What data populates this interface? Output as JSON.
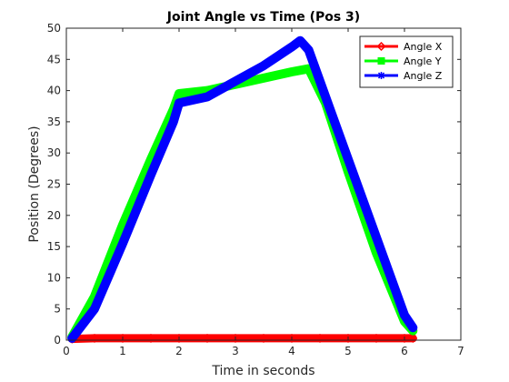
{
  "chart_data": {
    "type": "line",
    "title": "Joint Angle vs Time (Pos 3)",
    "xlabel": "Time in seconds",
    "ylabel": "Position (Degrees)",
    "xlim": [
      0,
      7
    ],
    "ylim": [
      0,
      50
    ],
    "xticks": [
      0,
      1,
      2,
      3,
      4,
      5,
      6,
      7
    ],
    "yticks": [
      0,
      5,
      10,
      15,
      20,
      25,
      30,
      35,
      40,
      45,
      50
    ],
    "grid": false,
    "legend_position": "top-right",
    "series": [
      {
        "name": "Angle X",
        "color": "#ff0000",
        "marker": "diamond",
        "x": [
          0.1,
          0.5,
          1.0,
          1.5,
          2.0,
          2.5,
          3.0,
          3.5,
          4.0,
          4.5,
          5.0,
          5.5,
          6.0,
          6.15
        ],
        "y": [
          0.2,
          0.3,
          0.3,
          0.3,
          0.3,
          0.3,
          0.3,
          0.3,
          0.3,
          0.3,
          0.3,
          0.3,
          0.3,
          0.3
        ]
      },
      {
        "name": "Angle Y",
        "color": "#00ff00",
        "marker": "square",
        "x": [
          0.1,
          0.5,
          1.0,
          1.5,
          1.9,
          2.0,
          2.5,
          3.0,
          3.5,
          4.0,
          4.3,
          4.6,
          5.0,
          5.5,
          6.0,
          6.15
        ],
        "y": [
          0.5,
          7.0,
          18.5,
          29.0,
          37.0,
          39.5,
          40.0,
          41.0,
          42.0,
          43.0,
          43.5,
          38.0,
          27.0,
          14.0,
          3.0,
          1.5
        ]
      },
      {
        "name": "Angle Z",
        "color": "#0000ff",
        "marker": "asterisk",
        "x": [
          0.1,
          0.5,
          1.0,
          1.5,
          1.9,
          2.0,
          2.5,
          3.0,
          3.5,
          4.0,
          4.15,
          4.3,
          4.6,
          5.0,
          5.5,
          6.0,
          6.15
        ],
        "y": [
          0.3,
          5.0,
          15.5,
          26.5,
          35.0,
          38.0,
          39.0,
          41.5,
          44.0,
          47.0,
          48.0,
          46.5,
          39.0,
          29.0,
          16.5,
          4.0,
          2.0
        ]
      }
    ]
  }
}
